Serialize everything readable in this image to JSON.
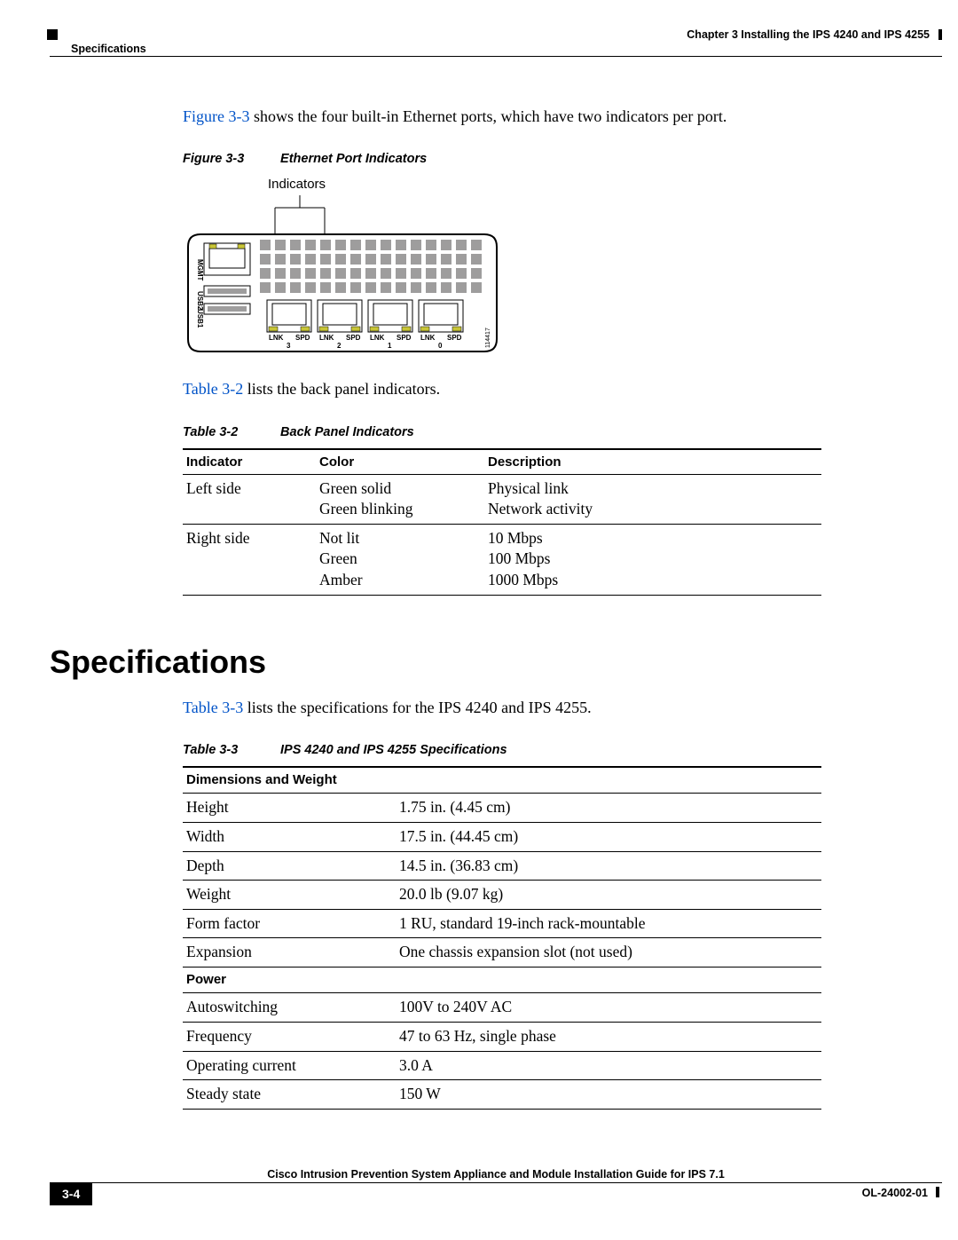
{
  "header": {
    "section": "Specifications",
    "chapter": "Chapter 3      Installing the IPS 4240 and IPS 4255"
  },
  "intro": {
    "fig_ref": "Figure 3-3",
    "fig_rest": " shows the four built-in Ethernet ports, which have two indicators per port."
  },
  "figure33": {
    "num": "Figure 3-3",
    "title": "Ethernet Port Indicators",
    "indicators_label": "Indicators",
    "side_labels": [
      "MGMT",
      "USB2",
      "USB1"
    ],
    "port_labels": [
      {
        "lnk": "LNK",
        "spd": "SPD",
        "n": "3"
      },
      {
        "lnk": "LNK",
        "spd": "SPD",
        "n": "2"
      },
      {
        "lnk": "LNK",
        "spd": "SPD",
        "n": "1"
      },
      {
        "lnk": "LNK",
        "spd": "SPD",
        "n": "0"
      }
    ],
    "part_no": "114417",
    "colors": {
      "outline": "#000000",
      "fill": "#ffffff",
      "vent": "#9e9d9d",
      "led": "#c8c536",
      "label": "#000000"
    }
  },
  "table32_intro": {
    "ref": "Table 3-2",
    "rest": " lists the back panel indicators."
  },
  "table32": {
    "num": "Table 3-2",
    "title": "Back Panel Indicators",
    "headers": [
      "Indicator",
      "Color",
      "Description"
    ],
    "col_widths": [
      "150px",
      "190px",
      ""
    ],
    "rows": [
      {
        "cells": [
          "Left side",
          "Green solid\nGreen blinking",
          "Physical link\nNetwork activity"
        ]
      },
      {
        "cells": [
          "Right side",
          "Not lit\nGreen\nAmber",
          "10 Mbps\n100 Mbps\n1000 Mbps"
        ]
      }
    ]
  },
  "sect_heading": "Specifications",
  "table33_intro": {
    "ref": "Table 3-3",
    "rest": " lists the specifications for the IPS 4240 and IPS 4255."
  },
  "table33": {
    "num": "Table 3-3",
    "title": "IPS 4240 and IPS 4255 Specifications",
    "col_widths": [
      "240px",
      ""
    ],
    "sections": [
      {
        "header": "Dimensions and Weight",
        "rows": [
          [
            "Height",
            "1.75 in. (4.45 cm)"
          ],
          [
            "Width",
            "17.5 in. (44.45 cm)"
          ],
          [
            "Depth",
            "14.5 in. (36.83 cm)"
          ],
          [
            "Weight",
            "20.0 lb (9.07 kg)"
          ],
          [
            "Form factor",
            "1 RU, standard 19-inch rack-mountable"
          ],
          [
            "Expansion",
            "One chassis expansion slot (not used)"
          ]
        ]
      },
      {
        "header": "Power",
        "rows": [
          [
            "Autoswitching",
            "100V to 240V AC"
          ],
          [
            "Frequency",
            "47 to 63 Hz, single phase"
          ],
          [
            "Operating current",
            "3.0 A"
          ],
          [
            "Steady state",
            "150 W"
          ]
        ]
      }
    ]
  },
  "footer": {
    "title": "Cisco Intrusion Prevention System Appliance and Module Installation Guide for IPS 7.1",
    "page": "3-4",
    "docid": "OL-24002-01"
  }
}
